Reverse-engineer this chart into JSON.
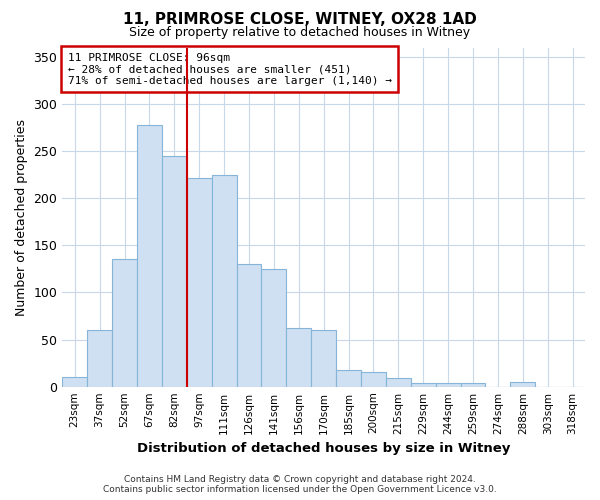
{
  "title": "11, PRIMROSE CLOSE, WITNEY, OX28 1AD",
  "subtitle": "Size of property relative to detached houses in Witney",
  "xlabel": "Distribution of detached houses by size in Witney",
  "ylabel": "Number of detached properties",
  "footer_line1": "Contains HM Land Registry data © Crown copyright and database right 2024.",
  "footer_line2": "Contains public sector information licensed under the Open Government Licence v3.0.",
  "annotation_line1": "11 PRIMROSE CLOSE: 96sqm",
  "annotation_line2": "← 28% of detached houses are smaller (451)",
  "annotation_line3": "71% of semi-detached houses are larger (1,140) →",
  "bar_labels": [
    "23sqm",
    "37sqm",
    "52sqm",
    "67sqm",
    "82sqm",
    "97sqm",
    "111sqm",
    "126sqm",
    "141sqm",
    "156sqm",
    "170sqm",
    "185sqm",
    "200sqm",
    "215sqm",
    "229sqm",
    "244sqm",
    "259sqm",
    "274sqm",
    "288sqm",
    "303sqm",
    "318sqm"
  ],
  "bar_values": [
    10,
    60,
    135,
    278,
    245,
    222,
    225,
    130,
    125,
    62,
    60,
    18,
    16,
    9,
    4,
    4,
    4,
    0,
    5,
    0,
    0
  ],
  "bar_color": "#cfe0f2",
  "bar_edge_color": "#85b5d9",
  "vline_x_index": 4,
  "vline_color": "#cc0000",
  "annotation_box_edge_color": "#cc0000",
  "ylim": [
    0,
    360
  ],
  "yticks": [
    0,
    50,
    100,
    150,
    200,
    250,
    300,
    350
  ],
  "background_color": "#ffffff",
  "grid_color": "#c8d8e8"
}
